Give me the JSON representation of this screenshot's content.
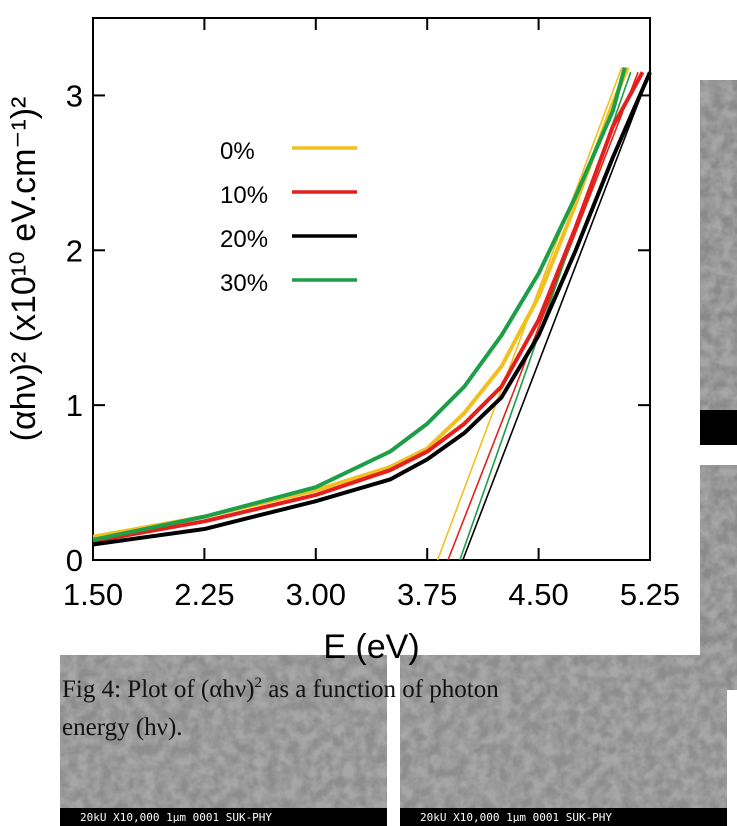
{
  "chart_data": {
    "type": "line",
    "x_label": "E (eV)",
    "y_label": "(αhν)² (x10¹⁰ eV.cm⁻¹)²",
    "xlim": [
      1.5,
      5.25
    ],
    "ylim": [
      0,
      3.5
    ],
    "xticks": [
      {
        "value": 1.5,
        "label": "1.50"
      },
      {
        "value": 2.25,
        "label": "2.25"
      },
      {
        "value": 3.0,
        "label": "3.00"
      },
      {
        "value": 3.75,
        "label": "3.75"
      },
      {
        "value": 4.5,
        "label": "4.50"
      },
      {
        "value": 5.25,
        "label": "5.25"
      }
    ],
    "yticks": [
      0,
      1,
      2,
      3
    ],
    "series": [
      {
        "name": "0%",
        "color": "#f2c01e",
        "x": [
          1.5,
          2.25,
          3.0,
          3.5,
          3.75,
          4.0,
          4.25,
          4.5,
          4.75,
          5.0,
          5.1
        ],
        "values": [
          0.15,
          0.28,
          0.45,
          0.6,
          0.72,
          0.95,
          1.25,
          1.7,
          2.3,
          2.95,
          3.18
        ]
      },
      {
        "name": "10%",
        "color": "#e3201b",
        "x": [
          1.5,
          2.25,
          3.0,
          3.5,
          3.75,
          4.0,
          4.25,
          4.5,
          4.75,
          5.0,
          5.2
        ],
        "values": [
          0.12,
          0.25,
          0.42,
          0.58,
          0.7,
          0.88,
          1.12,
          1.55,
          2.15,
          2.8,
          3.15
        ]
      },
      {
        "name": "20%",
        "color": "#000000",
        "x": [
          1.5,
          2.25,
          3.0,
          3.5,
          3.75,
          4.0,
          4.25,
          4.5,
          4.75,
          5.0,
          5.25
        ],
        "values": [
          0.1,
          0.2,
          0.38,
          0.52,
          0.65,
          0.82,
          1.05,
          1.45,
          2.0,
          2.6,
          3.15
        ]
      },
      {
        "name": "30%",
        "color": "#1e9e48",
        "x": [
          1.5,
          2.25,
          3.0,
          3.5,
          3.75,
          4.0,
          4.25,
          4.5,
          4.75,
          5.0,
          5.08
        ],
        "values": [
          0.13,
          0.28,
          0.47,
          0.7,
          0.88,
          1.12,
          1.45,
          1.85,
          2.35,
          2.9,
          3.18
        ]
      }
    ],
    "fit_lines": [
      {
        "color": "#f2c01e",
        "x": [
          3.82,
          5.06
        ],
        "values": [
          0,
          3.18
        ]
      },
      {
        "color": "#e3201b",
        "x": [
          3.89,
          5.17
        ],
        "values": [
          0,
          3.15
        ]
      },
      {
        "color": "#000000",
        "x": [
          3.99,
          5.25
        ],
        "values": [
          0,
          3.15
        ]
      },
      {
        "color": "#1e9e48",
        "x": [
          3.97,
          5.12
        ],
        "values": [
          0,
          3.15
        ]
      }
    ]
  },
  "caption": {
    "before": "Fig 4: Plot of (αhν)",
    "sup": "2",
    "after_line1": " as a function of photon",
    "line2": "energy (hν)."
  },
  "sem_labels": [
    "20kU  X10,000   1μm 0001 SUK-PHY",
    "20kU  X10,000   1μm 0001 SUK-PHY"
  ]
}
